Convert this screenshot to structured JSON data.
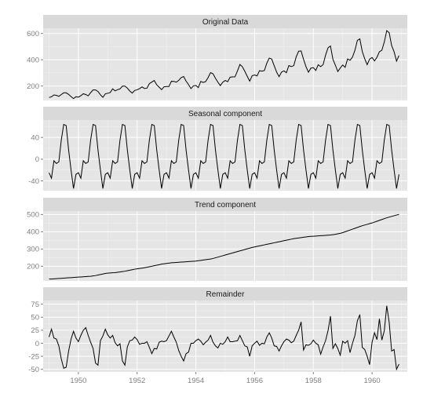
{
  "chart_data": {
    "type": "line",
    "x_ticks": [
      1950,
      1952,
      1954,
      1956,
      1958,
      1960
    ],
    "xlim": [
      1948.8,
      1961.2
    ],
    "grid": true,
    "panels": [
      {
        "title": "Original Data",
        "ylim": [
          90,
          640
        ],
        "yticks": [
          200,
          400,
          600
        ],
        "series": [
          {
            "x": 1949.0,
            "values": [
              112,
              118,
              132,
              129,
              121,
              135,
              148,
              148,
              136,
              119,
              104,
              118,
              115,
              126,
              141,
              135,
              125,
              149,
              170,
              170,
              158,
              133,
              114,
              140,
              145,
              150,
              178,
              163,
              172,
              178,
              199,
              199,
              184,
              162,
              146,
              166,
              171,
              180,
              193,
              181,
              183,
              218,
              230,
              242,
              209,
              191,
              172,
              194,
              196,
              196,
              236,
              235,
              229,
              243,
              264,
              272,
              237,
              211,
              180,
              201,
              204,
              188,
              235,
              227,
              234,
              264,
              302,
              293,
              259,
              229,
              203,
              229,
              242,
              233,
              267,
              269,
              270,
              315,
              364,
              347,
              312,
              274,
              237,
              278,
              284,
              277,
              317,
              313,
              318,
              374,
              413,
              405,
              355,
              306,
              271,
              306,
              315,
              301,
              356,
              348,
              355,
              422,
              465,
              467,
              404,
              347,
              305,
              336,
              340,
              318,
              362,
              348,
              363,
              435,
              491,
              505,
              404,
              359,
              310,
              337,
              360,
              342,
              406,
              396,
              420,
              472,
              548,
              559,
              463,
              407,
              362,
              405,
              417,
              391,
              419,
              461,
              472,
              535,
              622,
              606,
              508,
              461,
              390,
              432
            ]
          }
        ]
      },
      {
        "title": "Seasonal component",
        "ylim": [
          -58,
          72
        ],
        "yticks": [
          -40,
          0,
          40
        ],
        "series": [
          {
            "x": 1949.0,
            "seasonal_pattern": [
              -25,
              -35,
              -3,
              -8,
              -5,
              35,
              64,
              62,
              17,
              -20,
              -54,
              -28
            ],
            "years": 12
          }
        ]
      },
      {
        "title": "Trend component",
        "ylim": [
          115,
          520
        ],
        "yticks": [
          200,
          300,
          400,
          500
        ],
        "series": [
          {
            "x": 1949.0,
            "values": [
              126,
              126,
              127,
              128,
              129,
              130,
              131,
              132,
              133,
              134,
              135,
              136,
              137,
              138,
              139,
              140,
              141,
              142,
              144,
              146,
              149,
              152,
              155,
              158,
              160,
              161,
              162,
              163,
              165,
              167,
              169,
              171,
              174,
              177,
              180,
              183,
              185,
              187,
              189,
              191,
              194,
              197,
              200,
              203,
              206,
              209,
              212,
              214,
              216,
              218,
              220,
              221,
              222,
              223,
              224,
              225,
              226,
              227,
              228,
              229,
              230,
              232,
              234,
              236,
              238,
              240,
              242,
              245,
              249,
              253,
              257,
              261,
              265,
              269,
              273,
              277,
              281,
              285,
              289,
              293,
              297,
              301,
              305,
              309,
              312,
              315,
              318,
              321,
              324,
              327,
              330,
              333,
              336,
              339,
              342,
              345,
              348,
              351,
              354,
              357,
              360,
              362,
              364,
              366,
              368,
              370,
              372,
              373,
              374,
              375,
              376,
              377,
              378,
              379,
              380,
              381,
              383,
              385,
              388,
              391,
              395,
              400,
              405,
              410,
              415,
              420,
              425,
              430,
              435,
              439,
              443,
              447,
              451,
              456,
              461,
              466,
              471,
              476,
              481,
              485,
              489,
              493,
              497,
              500
            ]
          }
        ]
      },
      {
        "title": "Remainder",
        "ylim": [
          -55,
          82
        ],
        "yticks": [
          -50,
          -25,
          0,
          25,
          50,
          75
        ],
        "series": [
          {
            "x": 1949.0,
            "values": [
              12,
              27,
              10,
              8,
              -5,
              -30,
              -48,
              -46,
              -15,
              8,
              23,
              10,
              3,
              15,
              25,
              30,
              15,
              2,
              -10,
              -38,
              -42,
              5,
              14,
              27,
              16,
              10,
              15,
              1,
              -5,
              -1,
              -34,
              -42,
              -7,
              5,
              6,
              12,
              7,
              -2,
              0,
              0,
              3,
              -8,
              -20,
              -10,
              -11,
              2,
              4,
              3,
              5,
              14,
              23,
              12,
              2,
              -14,
              -25,
              -34,
              -20,
              -17,
              0,
              0,
              5,
              8,
              4,
              -3,
              2,
              6,
              15,
              2,
              -5,
              -9,
              0,
              -2,
              3,
              12,
              3,
              3,
              4,
              5,
              15,
              5,
              -5,
              -7,
              -25,
              -5,
              0,
              4,
              -4,
              0,
              -1,
              12,
              20,
              10,
              -5,
              -6,
              -15,
              -5,
              3,
              8,
              6,
              1,
              4,
              15,
              25,
              41,
              -13,
              -3,
              -4,
              -1,
              6,
              0,
              -3,
              -21,
              -7,
              5,
              24,
              52,
              -10,
              -1,
              -10,
              -23,
              4,
              0,
              5,
              -18,
              0,
              15,
              43,
              55,
              -8,
              -12,
              -25,
              -41,
              2,
              20,
              7,
              47,
              6,
              24,
              72,
              40,
              -15,
              -12,
              -50,
              -40
            ]
          }
        ]
      }
    ]
  }
}
